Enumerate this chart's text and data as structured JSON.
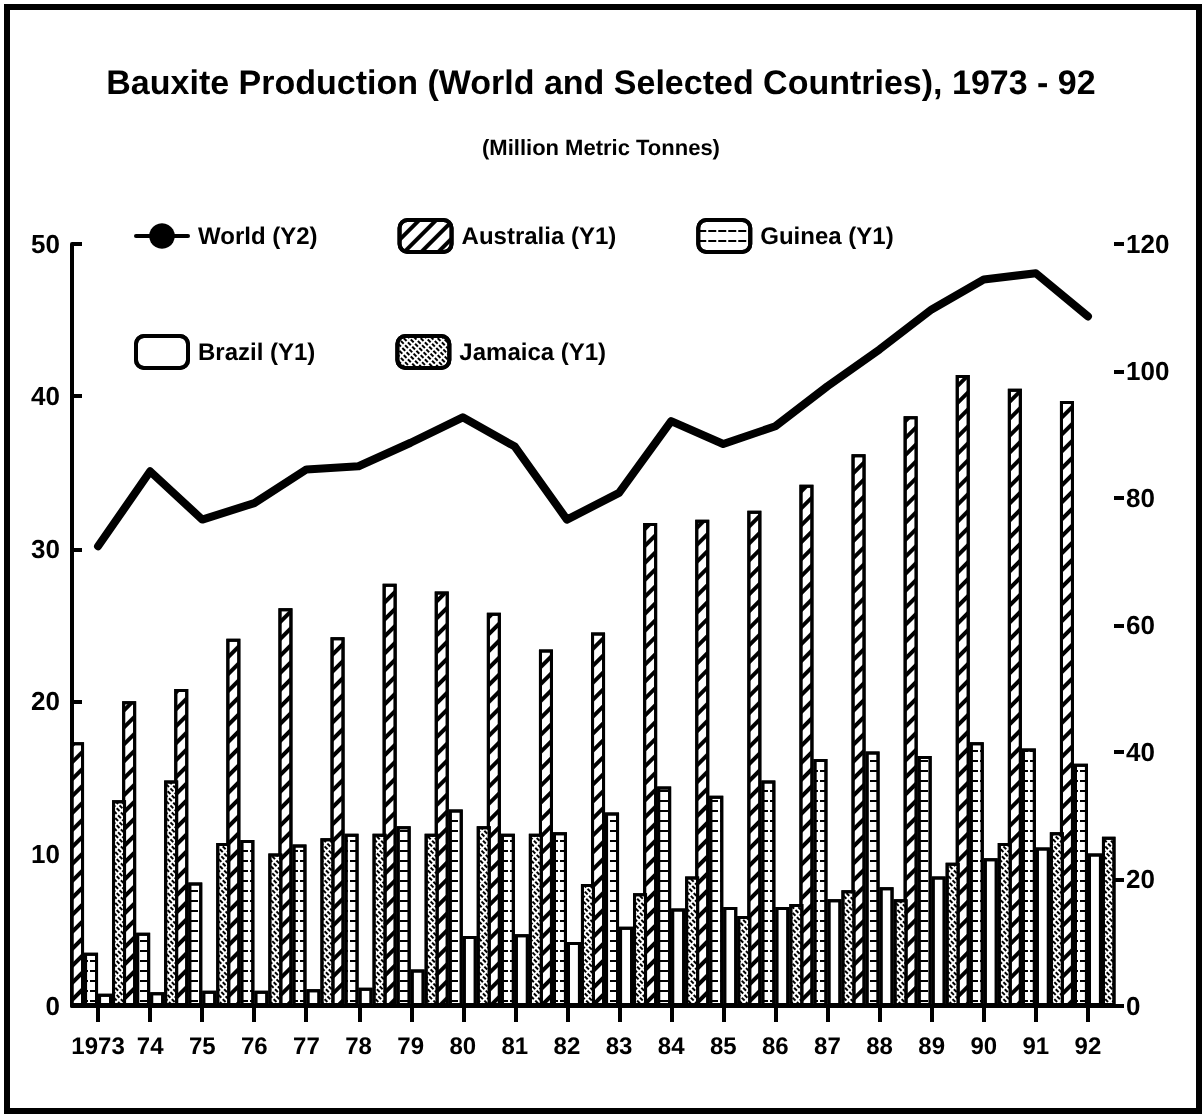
{
  "chart_data": {
    "type": "bar",
    "title": "Bauxite Production (World and Selected Countries), 1973 - 92",
    "subtitle": "(Million Metric Tonnes)",
    "categories": [
      "1973",
      "74",
      "75",
      "76",
      "77",
      "78",
      "79",
      "80",
      "81",
      "82",
      "83",
      "84",
      "85",
      "86",
      "87",
      "88",
      "89",
      "90",
      "91",
      "92"
    ],
    "series": [
      {
        "name": "World (Y2)",
        "type": "line",
        "axis": "y2",
        "color": "#000000",
        "values": [
          72.4,
          84.2,
          76.6,
          79.2,
          84.5,
          85.0,
          88.7,
          92.7,
          88.1,
          76.6,
          80.8,
          92.1,
          88.5,
          91.3,
          97.6,
          103.4,
          109.7,
          114.4,
          115.4,
          108.6
        ]
      },
      {
        "name": "Australia (Y1)",
        "color": "#000000",
        "values": [
          17.3,
          20.0,
          20.8,
          24.1,
          26.1,
          24.2,
          27.7,
          27.2,
          25.8,
          23.4,
          24.5,
          31.7,
          31.9,
          32.5,
          34.2,
          36.2,
          38.7,
          41.4,
          40.5,
          39.7
        ]
      },
      {
        "name": "Guinea (Y1)",
        "color": "#000000",
        "values": [
          3.5,
          4.8,
          8.1,
          10.9,
          10.6,
          11.3,
          11.8,
          12.9,
          11.3,
          11.4,
          12.7,
          14.4,
          13.8,
          14.8,
          16.2,
          16.7,
          16.4,
          17.3,
          16.9,
          15.9
        ]
      },
      {
        "name": "Brazil (Y1)",
        "color": "#000000",
        "values": [
          0.8,
          0.9,
          1.0,
          1.0,
          1.1,
          1.2,
          2.4,
          4.6,
          4.7,
          4.2,
          5.2,
          6.4,
          6.5,
          6.5,
          7.0,
          7.8,
          8.5,
          9.7,
          10.4,
          10.0
        ]
      },
      {
        "name": "Jamaica (Y1)",
        "color": "#000000",
        "values": [
          13.5,
          14.8,
          10.7,
          10.0,
          11.0,
          11.3,
          11.3,
          11.8,
          11.3,
          8.0,
          7.4,
          8.5,
          5.9,
          6.7,
          7.6,
          7.0,
          9.4,
          10.7,
          11.4,
          11.1
        ]
      }
    ],
    "ylim": [
      0,
      50
    ],
    "yticks": [
      0,
      10,
      20,
      30,
      40,
      50
    ],
    "y2lim": [
      0,
      120
    ],
    "y2ticks": [
      0,
      20,
      40,
      60,
      80,
      100,
      120
    ],
    "legend": "top",
    "grid": false,
    "marker": "none",
    "line_style": "solid"
  }
}
